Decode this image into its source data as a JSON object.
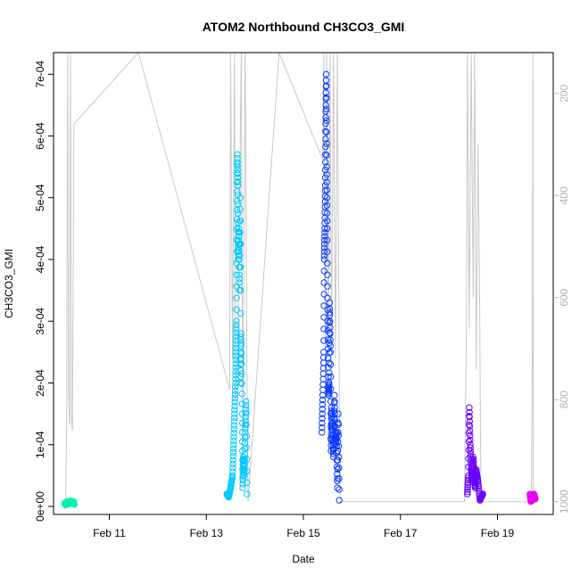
{
  "chart_data": {
    "type": "scatter",
    "title": "ATOM2 Northbound CH3CO3_GMI",
    "xlabel": "Date",
    "ylabel": "CH3CO3_GMI",
    "x_ticks": [
      {
        "day": 11,
        "label": "Feb 11"
      },
      {
        "day": 13,
        "label": "Feb 13"
      },
      {
        "day": 15,
        "label": "Feb 15"
      },
      {
        "day": 17,
        "label": "Feb 17"
      },
      {
        "day": 19,
        "label": "Feb 19"
      }
    ],
    "xlim_days": [
      9.85,
      20.15
    ],
    "y_ticks": [
      {
        "value": 0.0,
        "label": "0e+00"
      },
      {
        "value": 0.0001,
        "label": "1e-04"
      },
      {
        "value": 0.0002,
        "label": "2e-04"
      },
      {
        "value": 0.0003,
        "label": "3e-04"
      },
      {
        "value": 0.0004,
        "label": "4e-04"
      },
      {
        "value": 0.0005,
        "label": "5e-04"
      },
      {
        "value": 0.0006,
        "label": "6e-04"
      },
      {
        "value": 0.0007,
        "label": "7e-04"
      }
    ],
    "ylim": [
      -1.3e-05,
      0.000735
    ],
    "y2_ticks": [
      {
        "value": 200,
        "label": "200"
      },
      {
        "value": 400,
        "label": "400"
      },
      {
        "value": 600,
        "label": "600"
      },
      {
        "value": 800,
        "label": "800"
      },
      {
        "value": 1000,
        "label": "1000"
      }
    ],
    "y2lim_reversed": [
      1025,
      120
    ],
    "colors": {
      "pressure_line": "#c8c8c8",
      "axis": "#000000",
      "secondary_axis": "#b0b0b0"
    },
    "series": [
      {
        "color": "#00f5b0",
        "day_start": 10.05,
        "day_end": 10.3,
        "points": [
          [
            10.08,
            5e-06
          ],
          [
            10.12,
            8e-06
          ],
          [
            10.16,
            4e-06
          ],
          [
            10.2,
            9e-06
          ],
          [
            10.24,
            6e-06
          ],
          [
            10.28,
            3e-06
          ],
          [
            10.1,
            2e-06
          ],
          [
            10.18,
            7e-06
          ],
          [
            10.26,
            8e-06
          ],
          [
            10.14,
            6e-06
          ]
        ]
      },
      {
        "color": "#00c8ff",
        "day_start": 13.4,
        "day_end": 13.85,
        "points": [
          [
            13.42,
            2e-05
          ],
          [
            13.46,
            1.5e-05
          ],
          [
            13.5,
            3e-05
          ],
          [
            13.54,
            5e-05
          ],
          [
            13.56,
            0.0001
          ],
          [
            13.58,
            0.00015
          ],
          [
            13.6,
            0.0002
          ],
          [
            13.62,
            0.0003
          ],
          [
            13.63,
            0.00045
          ],
          [
            13.64,
            0.00057
          ],
          [
            13.65,
            0.00052
          ],
          [
            13.66,
            0.0004
          ],
          [
            13.68,
            0.00035
          ],
          [
            13.7,
            0.0005
          ],
          [
            13.72,
            0.00028
          ],
          [
            13.74,
            0.00015
          ],
          [
            13.76,
            8e-05
          ],
          [
            13.78,
            5e-05
          ],
          [
            13.8,
            0.00012
          ],
          [
            13.82,
            0.00017
          ],
          [
            13.84,
            2e-05
          ],
          [
            13.61,
            0.00025
          ],
          [
            13.67,
            0.00045
          ],
          [
            13.71,
            0.0002
          ],
          [
            13.75,
            3e-05
          ]
        ]
      },
      {
        "color": "#0a3cff",
        "day_start": 15.35,
        "day_end": 15.75,
        "points": [
          [
            15.38,
            0.00012
          ],
          [
            15.4,
            0.00018
          ],
          [
            15.42,
            0.00025
          ],
          [
            15.44,
            0.00045
          ],
          [
            15.46,
            0.00062
          ],
          [
            15.47,
            0.0007
          ],
          [
            15.48,
            0.00055
          ],
          [
            15.5,
            0.0003
          ],
          [
            15.52,
            0.00018
          ],
          [
            15.54,
            0.00033
          ],
          [
            15.56,
            0.00025
          ],
          [
            15.58,
            0.00016
          ],
          [
            15.6,
            0.00012
          ],
          [
            15.62,
            8e-05
          ],
          [
            15.64,
            0.00018
          ],
          [
            15.66,
            0.0001
          ],
          [
            15.68,
            0.00012
          ],
          [
            15.7,
            3e-05
          ],
          [
            15.72,
            0.00015
          ],
          [
            15.74,
            1e-05
          ],
          [
            15.43,
            0.0004
          ],
          [
            15.45,
            0.00052
          ],
          [
            15.49,
            0.00045
          ],
          [
            15.53,
            0.0002
          ],
          [
            15.57,
            9e-05
          ]
        ]
      },
      {
        "color": "#6a00ff",
        "day_start": 18.35,
        "day_end": 18.75,
        "points": [
          [
            18.38,
            2e-05
          ],
          [
            18.4,
            5e-05
          ],
          [
            18.42,
            0.00016
          ],
          [
            18.44,
            0.0001
          ],
          [
            18.46,
            6e-05
          ],
          [
            18.48,
            4e-05
          ],
          [
            18.5,
            8e-05
          ],
          [
            18.52,
            5e-05
          ],
          [
            18.54,
            3e-05
          ],
          [
            18.56,
            6e-05
          ],
          [
            18.6,
            4e-05
          ],
          [
            18.64,
            1e-05
          ],
          [
            18.7,
            2e-05
          ]
        ]
      },
      {
        "color": "#ee00ee",
        "day_start": 19.65,
        "day_end": 19.8,
        "points": [
          [
            19.67,
            2e-05
          ],
          [
            19.7,
            1.5e-05
          ],
          [
            19.72,
            1e-05
          ],
          [
            19.75,
            2e-05
          ],
          [
            19.78,
            1.2e-05
          ],
          [
            19.69,
            8e-06
          ],
          [
            19.74,
            1.8e-05
          ]
        ]
      }
    ],
    "pressure_line": [
      [
        10.1,
        1000
      ],
      [
        10.12,
        830
      ],
      [
        10.14,
        120
      ],
      [
        10.16,
        780
      ],
      [
        10.18,
        850
      ],
      [
        10.2,
        120
      ],
      [
        10.22,
        840
      ],
      [
        10.24,
        860
      ],
      [
        10.27,
        260
      ],
      [
        11.6,
        120
      ],
      [
        13.48,
        780
      ],
      [
        13.5,
        120
      ],
      [
        13.54,
        720
      ],
      [
        13.58,
        120
      ],
      [
        13.6,
        800
      ],
      [
        13.65,
        700
      ],
      [
        13.72,
        120
      ],
      [
        13.75,
        900
      ],
      [
        13.8,
        120
      ],
      [
        13.84,
        780
      ],
      [
        13.86,
        1000
      ],
      [
        14.5,
        120
      ],
      [
        15.4,
        330
      ],
      [
        15.42,
        120
      ],
      [
        15.45,
        700
      ],
      [
        15.48,
        120
      ],
      [
        15.52,
        650
      ],
      [
        15.55,
        120
      ],
      [
        15.58,
        700
      ],
      [
        15.62,
        120
      ],
      [
        15.66,
        720
      ],
      [
        15.7,
        120
      ],
      [
        15.74,
        760
      ],
      [
        15.76,
        1000
      ],
      [
        18.32,
        1000
      ],
      [
        18.36,
        660
      ],
      [
        18.38,
        120
      ],
      [
        18.42,
        660
      ],
      [
        18.46,
        120
      ],
      [
        18.5,
        600
      ],
      [
        18.53,
        120
      ],
      [
        18.56,
        740
      ],
      [
        18.6,
        300
      ],
      [
        18.63,
        580
      ],
      [
        18.66,
        1000
      ],
      [
        19.7,
        1000
      ],
      [
        19.72,
        700
      ],
      [
        19.73,
        120
      ],
      [
        19.74,
        1000
      ]
    ]
  }
}
